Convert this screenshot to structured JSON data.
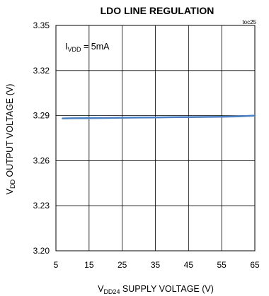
{
  "chart_data": {
    "type": "line",
    "title": "LDO LINE REGULATION",
    "figure_code": "toc25",
    "xlabel": {
      "main": "V",
      "sub": "DD24",
      "rest": " SUPPLY VOLTAGE (V)"
    },
    "ylabel": {
      "main": "V",
      "sub": "DD",
      "rest": " OUTPUT VOLTAGE (V)"
    },
    "annotation": {
      "main": "I",
      "sub": "VDD",
      "rest": " = 5mA"
    },
    "xlim": [
      5,
      65
    ],
    "ylim": [
      3.2,
      3.35
    ],
    "x_ticks": [
      5,
      15,
      25,
      35,
      45,
      55,
      65
    ],
    "x_tick_labels": [
      "5",
      "15",
      "25",
      "35",
      "45",
      "55",
      "65"
    ],
    "y_ticks": [
      3.2,
      3.23,
      3.26,
      3.29,
      3.32,
      3.35
    ],
    "y_tick_labels": [
      "3.20",
      "3.23",
      "3.26",
      "3.29",
      "3.32",
      "3.35"
    ],
    "grid": true,
    "line_color": "#4a7fc1",
    "series": [
      {
        "x": [
          7,
          10,
          15,
          20,
          25,
          30,
          35,
          40,
          45,
          50,
          55,
          60,
          65
        ],
        "y": [
          3.2881,
          3.2882,
          3.2883,
          3.2884,
          3.2886,
          3.2887,
          3.2888,
          3.2889,
          3.289,
          3.2891,
          3.2892,
          3.2895,
          3.29
        ]
      }
    ]
  }
}
